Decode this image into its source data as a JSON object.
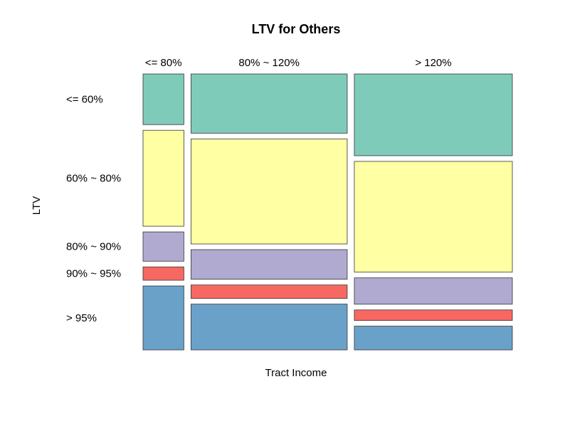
{
  "chart_data": {
    "type": "mosaic",
    "title": "LTV for Others",
    "xlabel": "Tract Income",
    "ylabel": "LTV",
    "x_categories": [
      "<= 80%",
      "80% ~ 120%",
      "> 120%"
    ],
    "y_categories": [
      "<= 60%",
      "60% ~ 80%",
      "80% ~ 90%",
      "90% ~ 95%",
      "> 95%"
    ],
    "x_proportions": [
      0.115,
      0.44,
      0.445
    ],
    "cells": [
      [
        0.19,
        0.36,
        0.11,
        0.05,
        0.24
      ],
      [
        0.22,
        0.39,
        0.11,
        0.05,
        0.17
      ],
      [
        0.31,
        0.42,
        0.1,
        0.04,
        0.09
      ]
    ],
    "colors": [
      "#7fcbba",
      "#ffffa3",
      "#b0aad0",
      "#f76862",
      "#6aa1c9"
    ]
  }
}
